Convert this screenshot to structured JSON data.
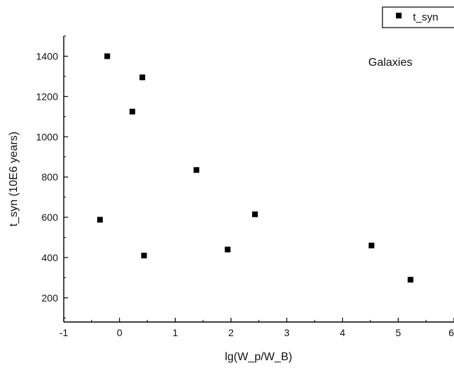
{
  "chart_data": {
    "type": "scatter",
    "xlabel": "lg(W_p/W_B)",
    "ylabel": "t_syn (10E6 years)",
    "xlim": [
      -1,
      6
    ],
    "ylim": [
      80,
      1500
    ],
    "x_ticks": [
      -1,
      0,
      1,
      2,
      3,
      4,
      5,
      6
    ],
    "y_ticks": [
      200,
      400,
      600,
      800,
      1000,
      1200,
      1400
    ],
    "annotation": "Galaxies",
    "legend": {
      "position": "top-right",
      "entries": [
        "t_syn"
      ]
    },
    "grid": false,
    "marker_color": "#000000",
    "series": [
      {
        "name": "t_syn",
        "points": [
          {
            "x": -0.22,
            "y": 1400
          },
          {
            "x": 0.41,
            "y": 1295
          },
          {
            "x": 0.23,
            "y": 1125
          },
          {
            "x": 1.38,
            "y": 835
          },
          {
            "x": -0.35,
            "y": 588
          },
          {
            "x": 2.43,
            "y": 615
          },
          {
            "x": 0.44,
            "y": 410
          },
          {
            "x": 1.94,
            "y": 440
          },
          {
            "x": 4.52,
            "y": 460
          },
          {
            "x": 5.22,
            "y": 290
          }
        ]
      }
    ]
  }
}
